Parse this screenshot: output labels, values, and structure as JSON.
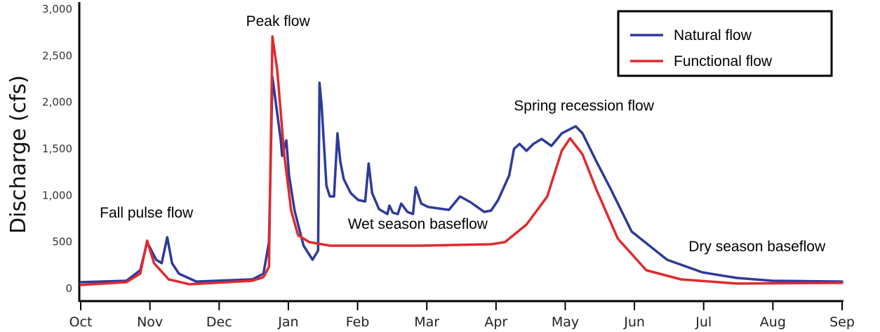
{
  "chart_data": {
    "type": "line",
    "title": "",
    "xlabel": "",
    "ylabel": "Discharge (cfs)",
    "ylim": [
      0,
      3000
    ],
    "xlim": [
      0,
      11
    ],
    "x_unit": "months since Oct",
    "grid": false,
    "legend_position": "top-right",
    "x_ticks": [
      "Oct",
      "Nov",
      "Dec",
      "Jan",
      "Feb",
      "Mar",
      "Apr",
      "May",
      "Jun",
      "Jul",
      "Aug",
      "Sep"
    ],
    "y_ticks": [
      0,
      500,
      1000,
      1500,
      2000,
      2500,
      3000
    ],
    "y_tick_labels": [
      "0",
      "500",
      "1,000",
      "1,500",
      "2,000",
      "2,500",
      "3,000"
    ],
    "series": [
      {
        "name": "Natural flow",
        "color": "#2e3a9a",
        "points": [
          [
            0,
            68
          ],
          [
            0.66,
            83
          ],
          [
            0.86,
            196
          ],
          [
            0.96,
            498
          ],
          [
            1.09,
            309
          ],
          [
            1.17,
            271
          ],
          [
            1.25,
            550
          ],
          [
            1.32,
            271
          ],
          [
            1.42,
            158
          ],
          [
            1.67,
            75
          ],
          [
            2.48,
            98
          ],
          [
            2.64,
            158
          ],
          [
            2.72,
            498
          ],
          [
            2.77,
            2270
          ],
          [
            2.89,
            1591
          ],
          [
            2.91,
            1425
          ],
          [
            2.97,
            1591
          ],
          [
            3.01,
            1214
          ],
          [
            3.09,
            837
          ],
          [
            3.22,
            460
          ],
          [
            3.35,
            309
          ],
          [
            3.43,
            407
          ],
          [
            3.45,
            2209
          ],
          [
            3.48,
            1968
          ],
          [
            3.55,
            1101
          ],
          [
            3.6,
            988
          ],
          [
            3.66,
            988
          ],
          [
            3.71,
            1666
          ],
          [
            3.75,
            1365
          ],
          [
            3.8,
            1176
          ],
          [
            3.9,
            1025
          ],
          [
            4.01,
            950
          ],
          [
            4.11,
            935
          ],
          [
            4.16,
            1342
          ],
          [
            4.21,
            1025
          ],
          [
            4.31,
            852
          ],
          [
            4.43,
            799
          ],
          [
            4.46,
            890
          ],
          [
            4.51,
            814
          ],
          [
            4.58,
            799
          ],
          [
            4.63,
            912
          ],
          [
            4.72,
            822
          ],
          [
            4.8,
            799
          ],
          [
            4.84,
            1086
          ],
          [
            4.92,
            912
          ],
          [
            5.02,
            875
          ],
          [
            5.32,
            844
          ],
          [
            5.48,
            988
          ],
          [
            5.63,
            927
          ],
          [
            5.83,
            822
          ],
          [
            5.93,
            837
          ],
          [
            6.03,
            950
          ],
          [
            6.19,
            1214
          ],
          [
            6.26,
            1500
          ],
          [
            6.34,
            1553
          ],
          [
            6.44,
            1478
          ],
          [
            6.54,
            1553
          ],
          [
            6.66,
            1606
          ],
          [
            6.8,
            1531
          ],
          [
            6.95,
            1666
          ],
          [
            7.15,
            1742
          ],
          [
            7.25,
            1666
          ],
          [
            7.45,
            1365
          ],
          [
            7.66,
            1063
          ],
          [
            7.96,
            611
          ],
          [
            8.47,
            309
          ],
          [
            8.98,
            173
          ],
          [
            9.48,
            113
          ],
          [
            9.99,
            83
          ],
          [
            11,
            75
          ]
        ]
      },
      {
        "name": "Functional flow",
        "color": "#e02a2e",
        "points": [
          [
            0,
            38
          ],
          [
            0.66,
            68
          ],
          [
            0.86,
            158
          ],
          [
            0.96,
            513
          ],
          [
            1.06,
            271
          ],
          [
            1.27,
            98
          ],
          [
            1.57,
            45
          ],
          [
            2.48,
            83
          ],
          [
            2.64,
            121
          ],
          [
            2.72,
            234
          ],
          [
            2.77,
            2707
          ],
          [
            2.84,
            2346
          ],
          [
            2.94,
            1440
          ],
          [
            3.04,
            837
          ],
          [
            3.14,
            573
          ],
          [
            3.3,
            498
          ],
          [
            3.6,
            460
          ],
          [
            4.92,
            460
          ],
          [
            5.93,
            475
          ],
          [
            6.13,
            498
          ],
          [
            6.44,
            686
          ],
          [
            6.74,
            988
          ],
          [
            6.95,
            1478
          ],
          [
            7.07,
            1613
          ],
          [
            7.25,
            1440
          ],
          [
            7.45,
            1063
          ],
          [
            7.76,
            535
          ],
          [
            8.17,
            196
          ],
          [
            8.67,
            98
          ],
          [
            9.48,
            53
          ],
          [
            11,
            60
          ]
        ]
      }
    ],
    "annotations": [
      {
        "text": "Peak flow",
        "x": 2.85,
        "y": 2820
      },
      {
        "text": "Fall pulse flow",
        "x": 0.95,
        "y": 760
      },
      {
        "text": "Wet season baseflow",
        "x": 4.87,
        "y": 640
      },
      {
        "text": "Spring recession flow",
        "x": 7.27,
        "y": 1910
      },
      {
        "text": "Dry season baseflow",
        "x": 9.77,
        "y": 400
      }
    ]
  }
}
